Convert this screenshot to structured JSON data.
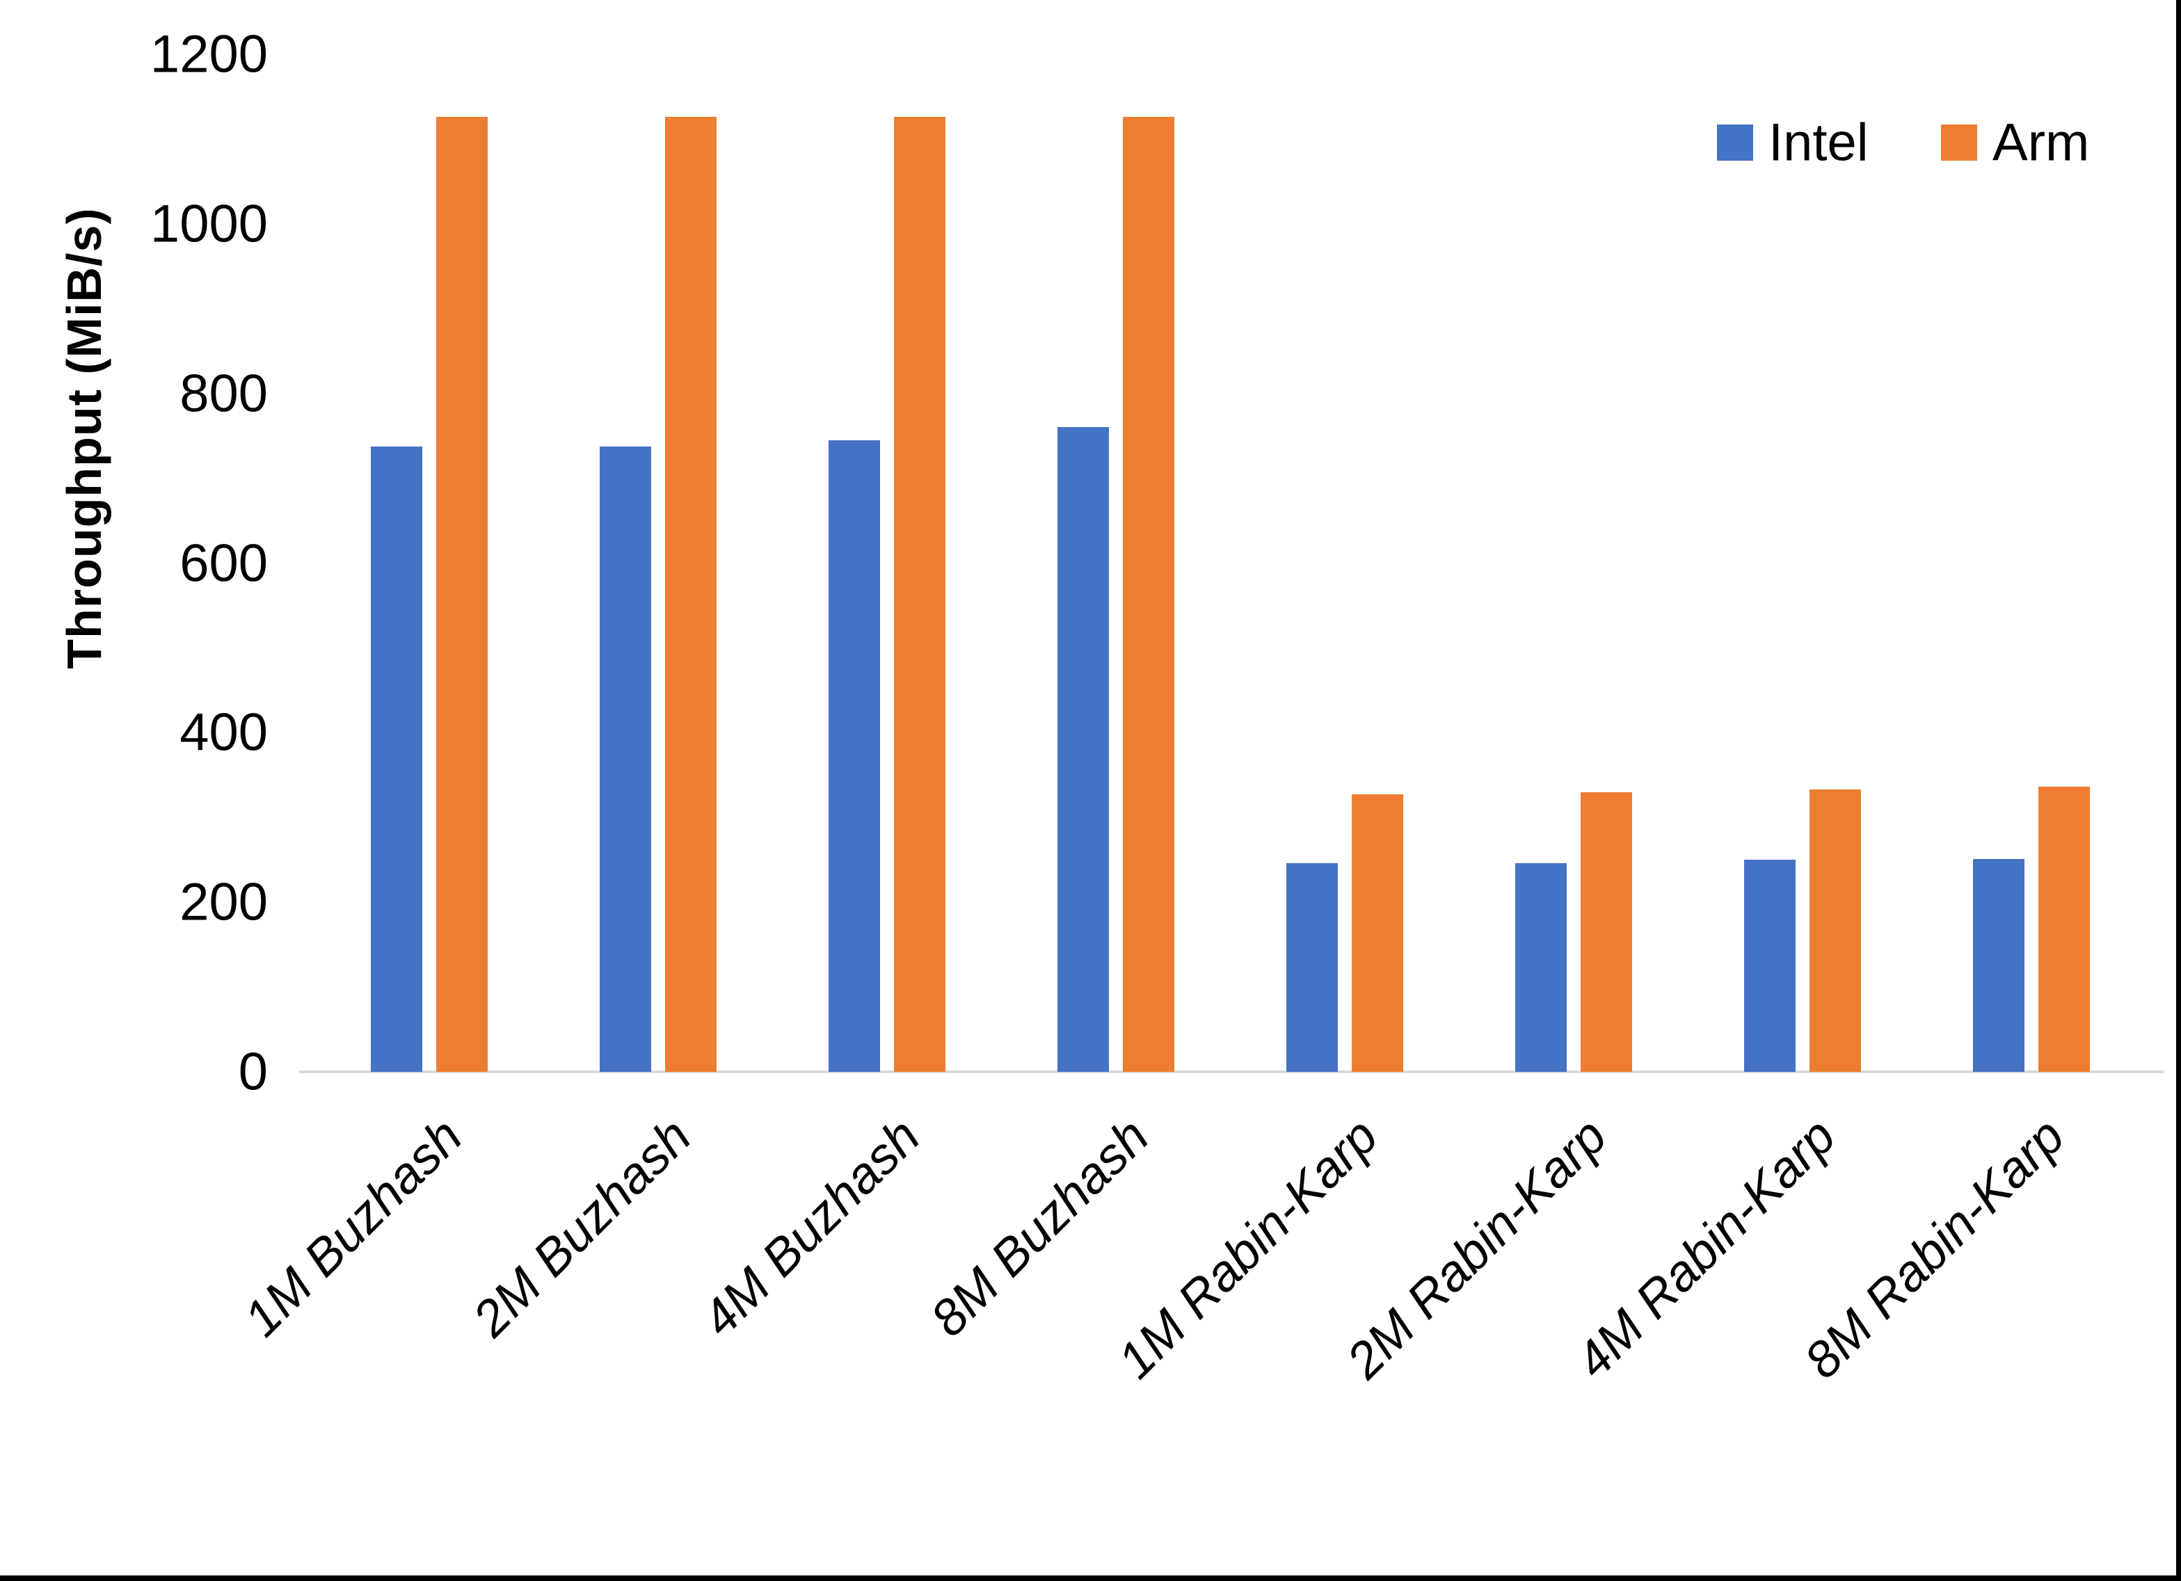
{
  "chart_data": {
    "type": "bar",
    "title": "",
    "xlabel": "",
    "ylabel": "Throughput (MiB/s)",
    "ylim": [
      0,
      1200
    ],
    "yticks": [
      0,
      200,
      400,
      600,
      800,
      1000,
      1200
    ],
    "grid": false,
    "legend_position": "top-right",
    "categories": [
      "1M Buzhash",
      "2M Buzhash",
      "4M Buzhash",
      "8M Buzhash",
      "1M Rabin-Karp",
      "2M Rabin-Karp",
      "4M Rabin-Karp",
      "8M Rabin-Karp"
    ],
    "series": [
      {
        "name": "Intel",
        "color": "#4472C4",
        "values": [
          737,
          737,
          745,
          760,
          246,
          246,
          250,
          251
        ]
      },
      {
        "name": "Arm",
        "color": "#ED7D31",
        "values": [
          1126,
          1126,
          1126,
          1126,
          327,
          330,
          333,
          336
        ]
      }
    ]
  },
  "colors": {
    "background": "#FFFFFF",
    "text": "#000000",
    "axis_line": "#D9D9D9",
    "frame_border": "#000000",
    "intel_bar": "#4472C4",
    "arm_bar": "#ED7D31"
  }
}
